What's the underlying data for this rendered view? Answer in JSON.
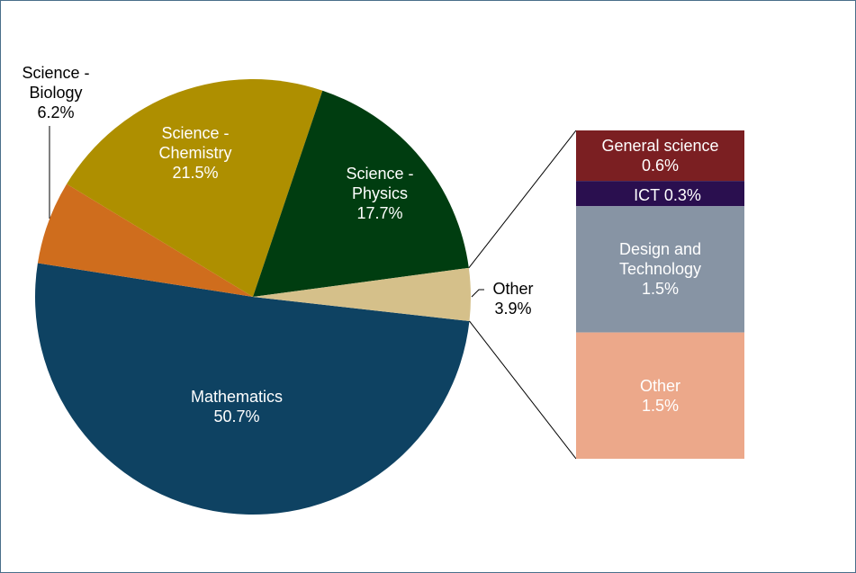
{
  "chart_data": {
    "type": "pie-of-bar",
    "categories": [
      "Mathematics",
      "Science - Biology",
      "Science - Chemistry",
      "Science - Physics",
      "Other"
    ],
    "values": [
      50.7,
      6.2,
      21.5,
      17.7,
      3.9
    ],
    "value_labels": [
      "50.7%",
      "6.2%",
      "21.5%",
      "17.7%",
      "3.9%"
    ],
    "colors": [
      "#0e4262",
      "#cf6d1d",
      "#ae8f00",
      "#003d10",
      "#d5c08a"
    ],
    "breakdown": {
      "categories": [
        "General science",
        "ICT",
        "Design and Technology",
        "Other"
      ],
      "values": [
        0.6,
        0.3,
        1.5,
        1.5
      ],
      "value_labels": [
        "0.6%",
        "0.3%",
        "1.5%",
        "1.5%"
      ],
      "colors": [
        "#7b1f22",
        "#2a0f4f",
        "#8794a4",
        "#eca88a"
      ]
    }
  }
}
